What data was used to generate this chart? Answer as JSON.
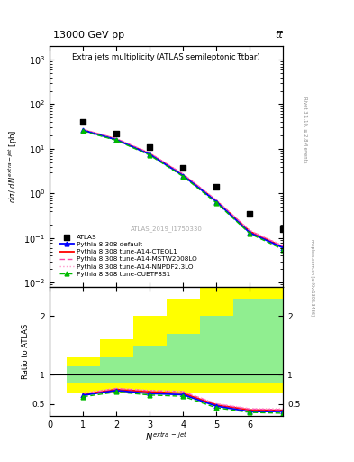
{
  "title_main": "13000 GeV pp",
  "title_right": "tt̅",
  "plot_title": "Extra jets multiplicity (ATLAS semileptonic t̅tbar)",
  "watermark": "ATLAS_2019_I1750330",
  "rivet_label": "Rivet 3.1.10, ≥ 2.8M events",
  "mcplots_label": "mcplots.cern.ch [arXiv:1306.3436]",
  "atlas_x": [
    1,
    2,
    3,
    4,
    5,
    6,
    7
  ],
  "atlas_y": [
    40.0,
    22.0,
    11.0,
    3.8,
    1.4,
    0.35,
    0.16
  ],
  "default_x": [
    1,
    2,
    3,
    4,
    5,
    6,
    7
  ],
  "default_y": [
    26.0,
    16.0,
    7.5,
    2.5,
    0.65,
    0.13,
    0.06
  ],
  "cteql1_y": [
    26.5,
    16.5,
    7.8,
    2.6,
    0.68,
    0.14,
    0.063
  ],
  "mstw_y": [
    27.0,
    16.8,
    8.0,
    2.7,
    0.7,
    0.145,
    0.065
  ],
  "nnpdf_y": [
    27.5,
    17.0,
    8.1,
    2.72,
    0.71,
    0.148,
    0.067
  ],
  "cuetp_y": [
    25.0,
    15.5,
    7.2,
    2.4,
    0.61,
    0.125,
    0.055
  ],
  "ratio_default_y": [
    0.65,
    0.73,
    0.68,
    0.66,
    0.464,
    0.371,
    0.375
  ],
  "ratio_cteql1_y": [
    0.6625,
    0.75,
    0.709,
    0.684,
    0.486,
    0.4,
    0.394
  ],
  "ratio_mstw_y": [
    0.675,
    0.764,
    0.727,
    0.711,
    0.5,
    0.414,
    0.406
  ],
  "ratio_nnpdf_y": [
    0.6875,
    0.773,
    0.736,
    0.716,
    0.507,
    0.423,
    0.419
  ],
  "ratio_cuetp_y": [
    0.625,
    0.705,
    0.655,
    0.632,
    0.436,
    0.357,
    0.344
  ],
  "band_edges": [
    0.5,
    1.5,
    2.5,
    3.5,
    4.5,
    5.5,
    6.5
  ],
  "band_green_lo": [
    0.85,
    0.85,
    0.85,
    0.85,
    0.85,
    0.85
  ],
  "band_green_hi": [
    1.15,
    1.3,
    1.5,
    1.7,
    2.0,
    2.3
  ],
  "band_yellow_lo": [
    0.7,
    0.7,
    0.7,
    0.7,
    0.7,
    0.7
  ],
  "band_yellow_hi": [
    1.3,
    1.6,
    2.0,
    2.3,
    2.7,
    3.0
  ],
  "legend_entries": [
    "ATLAS",
    "Pythia 8.308 default",
    "Pythia 8.308 tune-A14-CTEQL1",
    "Pythia 8.308 tune-A14-MSTW2008LO",
    "Pythia 8.308 tune-A14-NNPDF2.3LO",
    "Pythia 8.308 tune-CUETP8S1"
  ],
  "color_default": "#0000ff",
  "color_cteql1": "#ff0000",
  "color_mstw": "#ff44aa",
  "color_nnpdf": "#ff99cc",
  "color_cuetp": "#00bb00",
  "ylim_main": [
    0.008,
    2000
  ],
  "ylim_ratio": [
    0.3,
    2.5
  ],
  "xlim": [
    0,
    7.0
  ]
}
